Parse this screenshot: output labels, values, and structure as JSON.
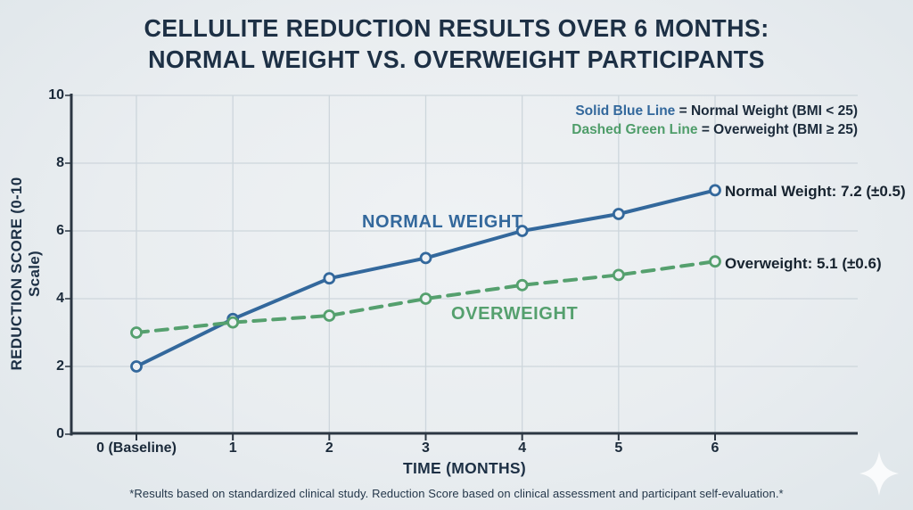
{
  "title": {
    "line1": "CELLULITE REDUCTION RESULTS OVER 6 MONTHS:",
    "line2": "NORMAL WEIGHT VS. OVERWEIGHT PARTICIPANTS"
  },
  "legend": {
    "items": [
      {
        "colored_label": "Solid Blue Line",
        "rest": " = Normal Weight (BMI < 25)",
        "color": "#33689c"
      },
      {
        "colored_label": "Dashed Green Line",
        "rest": " = Overweight (BMI ≥ 25)",
        "color": "#4f9d6a"
      }
    ]
  },
  "chart_data": {
    "type": "line",
    "title": "Cellulite Reduction Results Over 6 Months",
    "xlabel": "TIME (MONTHS)",
    "ylabel": "REDUCTION SCORE (0-10 Scale)",
    "categories": [
      "0 (Baseline)",
      "1",
      "2",
      "3",
      "4",
      "5",
      "6"
    ],
    "x": [
      0,
      1,
      2,
      3,
      4,
      5,
      6
    ],
    "ylim": [
      0,
      10
    ],
    "yticks": [
      0,
      2,
      4,
      6,
      8,
      10
    ],
    "grid": true,
    "legend_position": "top-right",
    "series": [
      {
        "name": "Normal Weight",
        "style": "solid",
        "color": "#33689c",
        "values": [
          2.0,
          3.4,
          4.6,
          5.2,
          6.0,
          6.5,
          7.2
        ],
        "final_value": "7.2",
        "final_error": "±0.5",
        "end_label": "Normal Weight: 7.2 (±0.5)",
        "inline_label": "NORMAL WEIGHT"
      },
      {
        "name": "Overweight",
        "style": "dashed",
        "color": "#55a06e",
        "values": [
          3.0,
          3.3,
          3.5,
          4.0,
          4.4,
          4.7,
          5.1
        ],
        "final_value": "5.1",
        "final_error": "±0.6",
        "end_label": "Overweight: 5.1 (±0.6)",
        "inline_label": "OVERWEIGHT"
      }
    ]
  },
  "footnote": "*Results based on standardized clinical study. Reduction Score based on clinical assessment and participant self-evaluation.*",
  "icons": {
    "sparkle": "four-point-star"
  },
  "colors": {
    "background": "#e9edf0",
    "title_text": "#1d3045",
    "grid_line": "#cdd6dc",
    "axis_line": "#2b3642",
    "marker_fill": "#eef1f4",
    "normal_weight_blue": "#33689c",
    "overweight_green": "#55a06e"
  }
}
